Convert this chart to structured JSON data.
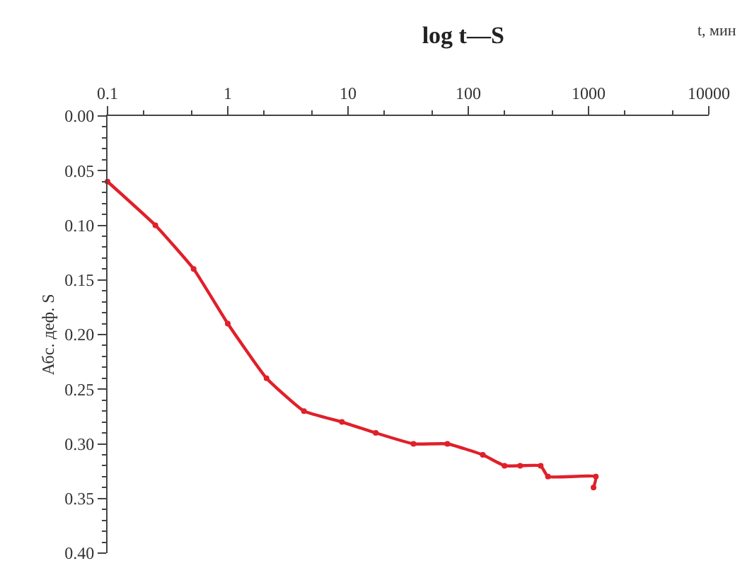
{
  "chart_data": {
    "type": "line",
    "title": "log t—S",
    "xlabel": "t, мин",
    "ylabel": "Абс. деф. S",
    "log": "x",
    "legend": false,
    "marker": "circle",
    "line_style": "solid",
    "x": [
      0.1,
      0.25,
      0.52,
      1.0,
      2.1,
      4.3,
      8.9,
      17,
      35,
      67,
      132,
      200,
      270,
      400,
      460,
      1150,
      1100
    ],
    "series": [
      {
        "color": "#e0202a",
        "values": [
          0.06,
          0.1,
          0.14,
          0.19,
          0.24,
          0.27,
          0.28,
          0.29,
          0.3,
          0.3,
          0.31,
          0.32,
          0.32,
          0.32,
          0.33,
          0.33,
          0.34
        ]
      }
    ],
    "xlim": [
      0.1,
      10000
    ],
    "xticks": [
      0.1,
      1,
      10,
      100,
      1000,
      10000
    ],
    "ylim": [
      0.4,
      0.0
    ],
    "yticks": [
      {
        "value": 0,
        "label": "0.00"
      },
      {
        "value": 0.05,
        "label": "0.05"
      },
      {
        "value": 0.1,
        "label": "0.10"
      },
      {
        "value": 0.15,
        "label": "0.15"
      },
      {
        "value": 0.2,
        "label": "0.20"
      },
      {
        "value": 0.25,
        "label": "0.25"
      },
      {
        "value": 0.3,
        "label": "0.30"
      },
      {
        "value": 0.35,
        "label": "0.35"
      },
      {
        "value": 0.4,
        "label": "0.40"
      }
    ]
  }
}
